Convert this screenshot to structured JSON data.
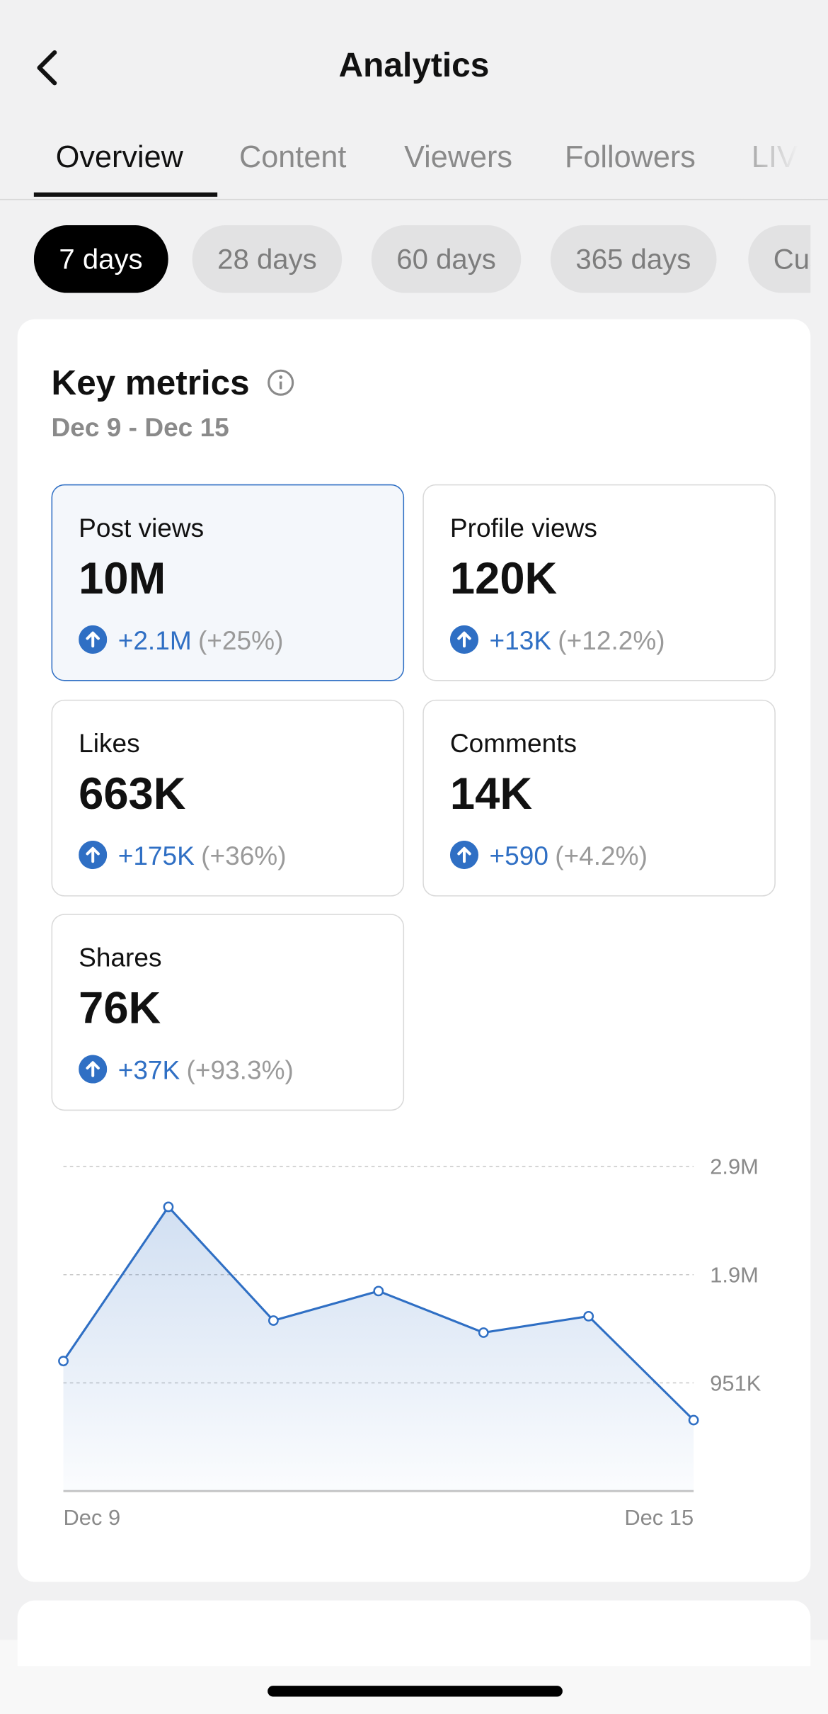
{
  "header": {
    "title": "Analytics"
  },
  "tabs": [
    "Overview",
    "Content",
    "Viewers",
    "Followers",
    "LIVE"
  ],
  "periods": [
    "7 days",
    "28 days",
    "60 days",
    "365 days",
    "Custom"
  ],
  "key_metrics": {
    "title": "Key metrics",
    "range": "Dec 9 - Dec 15",
    "metrics": [
      {
        "label": "Post views",
        "value": "10M",
        "change": "+2.1M",
        "percent": "(+25%)"
      },
      {
        "label": "Profile views",
        "value": "120K",
        "change": "+13K",
        "percent": "(+12.2%)"
      },
      {
        "label": "Likes",
        "value": "663K",
        "change": "+175K",
        "percent": "(+36%)"
      },
      {
        "label": "Comments",
        "value": "14K",
        "change": "+590",
        "percent": "(+4.2%)"
      },
      {
        "label": "Shares",
        "value": "76K",
        "change": "+37K",
        "percent": "(+93.3%)"
      }
    ]
  },
  "chart_data": {
    "type": "line",
    "categories": [
      "Dec 9",
      null,
      null,
      null,
      null,
      null,
      "Dec 15"
    ],
    "series": [
      {
        "name": "Post views",
        "color": "#2f6fc4",
        "values": [
          1143000,
          2498000,
          1499000,
          1758000,
          1393000,
          1537000,
          624000
        ]
      }
    ],
    "ylim": [
      0,
      2853000
    ],
    "yticks": [
      {
        "value": 951000,
        "label": "951K"
      },
      {
        "value": 1902000,
        "label": "1.9M"
      },
      {
        "value": 2853000,
        "label": "2.9M"
      }
    ],
    "grid": true
  }
}
